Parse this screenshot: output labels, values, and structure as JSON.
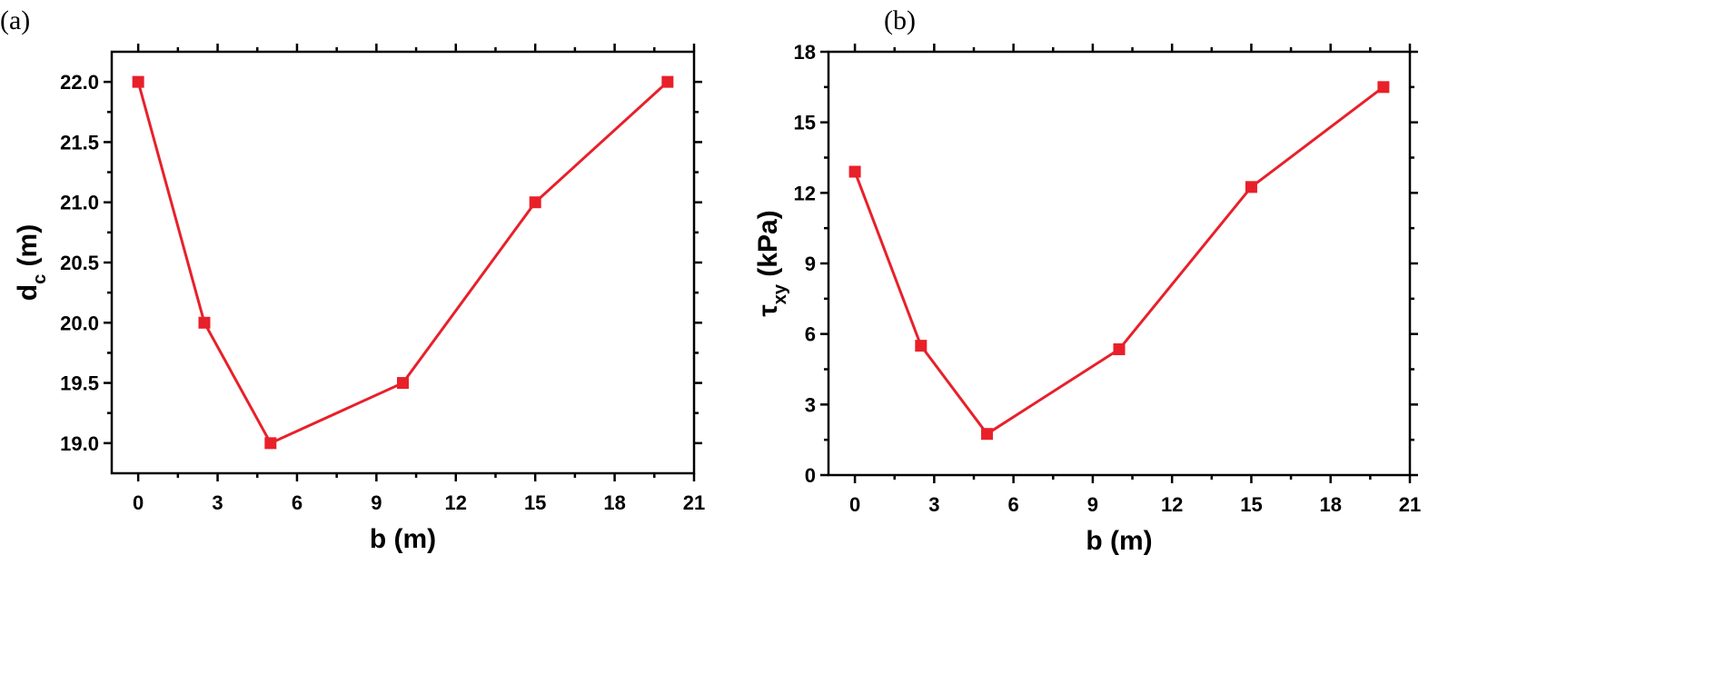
{
  "panels": [
    {
      "label": "(a)"
    },
    {
      "label": "(b)"
    }
  ],
  "chart_data": [
    {
      "type": "line",
      "title": "",
      "xlabel": "b (m)",
      "ylabel": {
        "main": "d",
        "sub": "c",
        "unit": " (m)"
      },
      "xlim": [
        -1,
        21
      ],
      "ylim": [
        18.75,
        22.25
      ],
      "x_ticks": [
        0,
        3,
        6,
        9,
        12,
        15,
        18,
        21
      ],
      "y_ticks": [
        19.0,
        19.5,
        20.0,
        20.5,
        21.0,
        21.5,
        22.0
      ],
      "y_tick_labels": [
        "19.0",
        "19.5",
        "20.0",
        "20.5",
        "21.0",
        "21.5",
        "22.0"
      ],
      "grid": false,
      "series": [
        {
          "color": "#e8202a",
          "marker": "square",
          "x": [
            0,
            2.5,
            5,
            10,
            15,
            20
          ],
          "y": [
            22.0,
            20.0,
            19.0,
            19.5,
            21.0,
            22.0
          ]
        }
      ]
    },
    {
      "type": "line",
      "title": "",
      "xlabel": "b (m)",
      "ylabel": {
        "main": "τ",
        "sub": "xy",
        "unit": " (kPa)"
      },
      "xlim": [
        -1,
        21
      ],
      "ylim": [
        0,
        18
      ],
      "x_ticks": [
        0,
        3,
        6,
        9,
        12,
        15,
        18,
        21
      ],
      "y_ticks": [
        0,
        3,
        6,
        9,
        12,
        15,
        18
      ],
      "y_tick_labels": [
        "0",
        "3",
        "6",
        "9",
        "12",
        "15",
        "18"
      ],
      "grid": false,
      "series": [
        {
          "color": "#e8202a",
          "marker": "square",
          "x": [
            0,
            2.5,
            5,
            10,
            15,
            20
          ],
          "y": [
            12.9,
            5.5,
            1.75,
            5.35,
            12.25,
            16.5
          ]
        }
      ]
    }
  ]
}
